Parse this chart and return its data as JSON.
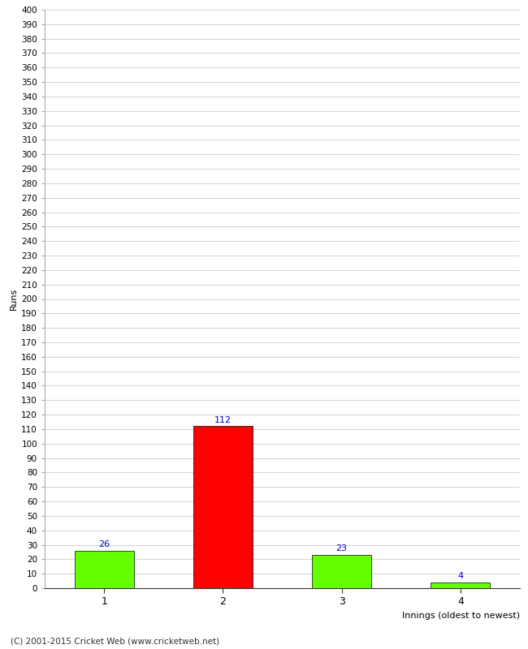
{
  "categories": [
    1,
    2,
    3,
    4
  ],
  "values": [
    26,
    112,
    23,
    4
  ],
  "bar_colors": [
    "#66ff00",
    "#ff0000",
    "#66ff00",
    "#66ff00"
  ],
  "xlabel": "Innings (oldest to newest)",
  "ylabel": "Runs",
  "ylim": [
    0,
    400
  ],
  "ytick_step": 10,
  "label_color": "#0000cc",
  "background_color": "#ffffff",
  "grid_color": "#cccccc",
  "footer": "(C) 2001-2015 Cricket Web (www.cricketweb.net)",
  "bar_edge_color": "#000000",
  "bar_width": 0.5
}
